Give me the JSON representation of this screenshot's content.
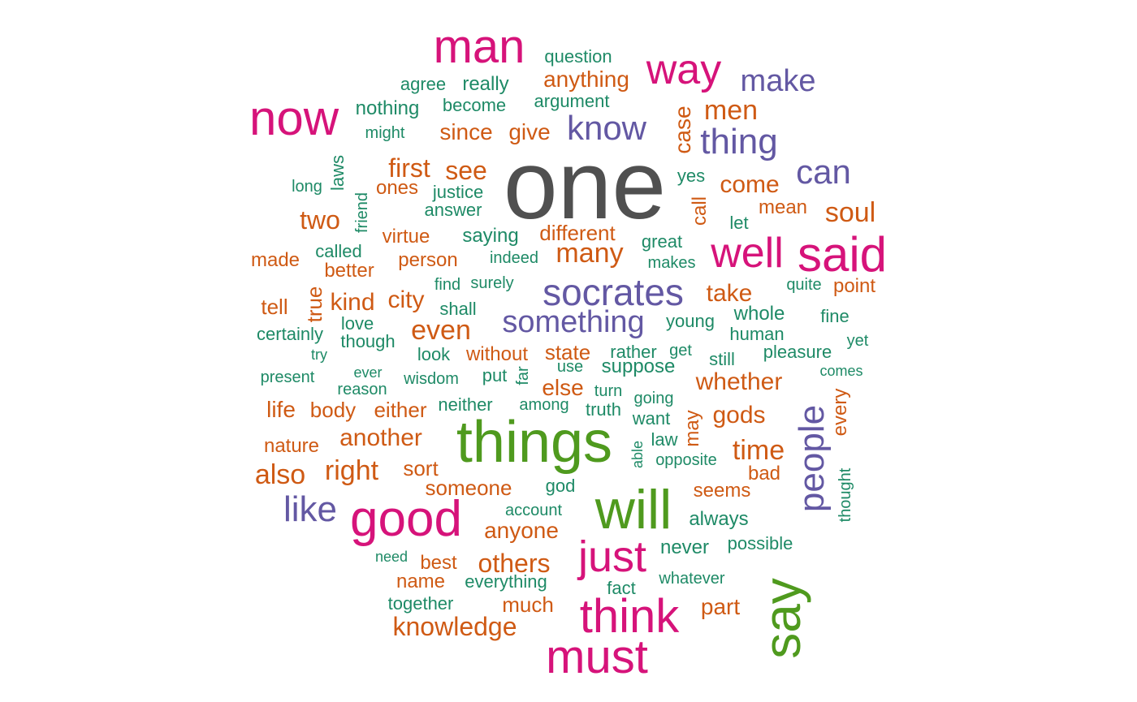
{
  "palette": {
    "gray": "#505050",
    "green": "#4f9a1e",
    "magenta": "#d6137a",
    "purple": "#6358a3",
    "orange": "#cf5a14",
    "teal": "#1e8a66"
  },
  "words": [
    {
      "text": "one",
      "c": "gray"
    },
    {
      "text": "things",
      "c": "green"
    },
    {
      "text": "will",
      "c": "green"
    },
    {
      "text": "say",
      "c": "green"
    },
    {
      "text": "man",
      "c": "magenta"
    },
    {
      "text": "now",
      "c": "magenta"
    },
    {
      "text": "way",
      "c": "magenta"
    },
    {
      "text": "well",
      "c": "magenta"
    },
    {
      "text": "said",
      "c": "magenta"
    },
    {
      "text": "good",
      "c": "magenta"
    },
    {
      "text": "just",
      "c": "magenta"
    },
    {
      "text": "think",
      "c": "magenta"
    },
    {
      "text": "must",
      "c": "magenta"
    },
    {
      "text": "make",
      "c": "purple"
    },
    {
      "text": "know",
      "c": "purple"
    },
    {
      "text": "thing",
      "c": "purple"
    },
    {
      "text": "can",
      "c": "purple"
    },
    {
      "text": "socrates",
      "c": "purple"
    },
    {
      "text": "something",
      "c": "purple"
    },
    {
      "text": "like",
      "c": "purple"
    },
    {
      "text": "people",
      "c": "purple"
    },
    {
      "text": "anything",
      "c": "orange"
    },
    {
      "text": "men",
      "c": "orange"
    },
    {
      "text": "since",
      "c": "orange"
    },
    {
      "text": "give",
      "c": "orange"
    },
    {
      "text": "case",
      "c": "orange"
    },
    {
      "text": "first",
      "c": "orange"
    },
    {
      "text": "see",
      "c": "orange"
    },
    {
      "text": "ones",
      "c": "orange"
    },
    {
      "text": "come",
      "c": "orange"
    },
    {
      "text": "two",
      "c": "orange"
    },
    {
      "text": "call",
      "c": "orange"
    },
    {
      "text": "mean",
      "c": "orange"
    },
    {
      "text": "soul",
      "c": "orange"
    },
    {
      "text": "different",
      "c": "orange"
    },
    {
      "text": "virtue",
      "c": "orange"
    },
    {
      "text": "made",
      "c": "orange"
    },
    {
      "text": "better",
      "c": "orange"
    },
    {
      "text": "person",
      "c": "orange"
    },
    {
      "text": "many",
      "c": "orange"
    },
    {
      "text": "take",
      "c": "orange"
    },
    {
      "text": "point",
      "c": "orange"
    },
    {
      "text": "tell",
      "c": "orange"
    },
    {
      "text": "true",
      "c": "orange"
    },
    {
      "text": "kind",
      "c": "orange"
    },
    {
      "text": "city",
      "c": "orange"
    },
    {
      "text": "even",
      "c": "orange"
    },
    {
      "text": "without",
      "c": "orange"
    },
    {
      "text": "state",
      "c": "orange"
    },
    {
      "text": "whether",
      "c": "orange"
    },
    {
      "text": "else",
      "c": "orange"
    },
    {
      "text": "life",
      "c": "orange"
    },
    {
      "text": "body",
      "c": "orange"
    },
    {
      "text": "either",
      "c": "orange"
    },
    {
      "text": "gods",
      "c": "orange"
    },
    {
      "text": "may",
      "c": "orange"
    },
    {
      "text": "nature",
      "c": "orange"
    },
    {
      "text": "another",
      "c": "orange"
    },
    {
      "text": "time",
      "c": "orange"
    },
    {
      "text": "also",
      "c": "orange"
    },
    {
      "text": "right",
      "c": "orange"
    },
    {
      "text": "sort",
      "c": "orange"
    },
    {
      "text": "bad",
      "c": "orange"
    },
    {
      "text": "someone",
      "c": "orange"
    },
    {
      "text": "seems",
      "c": "orange"
    },
    {
      "text": "anyone",
      "c": "orange"
    },
    {
      "text": "others",
      "c": "orange"
    },
    {
      "text": "best",
      "c": "orange"
    },
    {
      "text": "name",
      "c": "orange"
    },
    {
      "text": "much",
      "c": "orange"
    },
    {
      "text": "part",
      "c": "orange"
    },
    {
      "text": "knowledge",
      "c": "orange"
    },
    {
      "text": "every",
      "c": "orange"
    },
    {
      "text": "question",
      "c": "teal"
    },
    {
      "text": "agree",
      "c": "teal"
    },
    {
      "text": "really",
      "c": "teal"
    },
    {
      "text": "nothing",
      "c": "teal"
    },
    {
      "text": "become",
      "c": "teal"
    },
    {
      "text": "argument",
      "c": "teal"
    },
    {
      "text": "might",
      "c": "teal"
    },
    {
      "text": "laws",
      "c": "teal"
    },
    {
      "text": "long",
      "c": "teal"
    },
    {
      "text": "justice",
      "c": "teal"
    },
    {
      "text": "yes",
      "c": "teal"
    },
    {
      "text": "friend",
      "c": "teal"
    },
    {
      "text": "answer",
      "c": "teal"
    },
    {
      "text": "let",
      "c": "teal"
    },
    {
      "text": "saying",
      "c": "teal"
    },
    {
      "text": "great",
      "c": "teal"
    },
    {
      "text": "called",
      "c": "teal"
    },
    {
      "text": "indeed",
      "c": "teal"
    },
    {
      "text": "makes",
      "c": "teal"
    },
    {
      "text": "find",
      "c": "teal"
    },
    {
      "text": "surely",
      "c": "teal"
    },
    {
      "text": "quite",
      "c": "teal"
    },
    {
      "text": "shall",
      "c": "teal"
    },
    {
      "text": "whole",
      "c": "teal"
    },
    {
      "text": "love",
      "c": "teal"
    },
    {
      "text": "young",
      "c": "teal"
    },
    {
      "text": "fine",
      "c": "teal"
    },
    {
      "text": "certainly",
      "c": "teal"
    },
    {
      "text": "though",
      "c": "teal"
    },
    {
      "text": "human",
      "c": "teal"
    },
    {
      "text": "yet",
      "c": "teal"
    },
    {
      "text": "try",
      "c": "teal"
    },
    {
      "text": "look",
      "c": "teal"
    },
    {
      "text": "rather",
      "c": "teal"
    },
    {
      "text": "get",
      "c": "teal"
    },
    {
      "text": "pleasure",
      "c": "teal"
    },
    {
      "text": "still",
      "c": "teal"
    },
    {
      "text": "present",
      "c": "teal"
    },
    {
      "text": "ever",
      "c": "teal"
    },
    {
      "text": "put",
      "c": "teal"
    },
    {
      "text": "far",
      "c": "teal"
    },
    {
      "text": "use",
      "c": "teal"
    },
    {
      "text": "suppose",
      "c": "teal"
    },
    {
      "text": "comes",
      "c": "teal"
    },
    {
      "text": "wisdom",
      "c": "teal"
    },
    {
      "text": "reason",
      "c": "teal"
    },
    {
      "text": "turn",
      "c": "teal"
    },
    {
      "text": "neither",
      "c": "teal"
    },
    {
      "text": "among",
      "c": "teal"
    },
    {
      "text": "truth",
      "c": "teal"
    },
    {
      "text": "going",
      "c": "teal"
    },
    {
      "text": "want",
      "c": "teal"
    },
    {
      "text": "law",
      "c": "teal"
    },
    {
      "text": "able",
      "c": "teal"
    },
    {
      "text": "opposite",
      "c": "teal"
    },
    {
      "text": "god",
      "c": "teal"
    },
    {
      "text": "thought",
      "c": "teal"
    },
    {
      "text": "account",
      "c": "teal"
    },
    {
      "text": "always",
      "c": "teal"
    },
    {
      "text": "need",
      "c": "teal"
    },
    {
      "text": "never",
      "c": "teal"
    },
    {
      "text": "possible",
      "c": "teal"
    },
    {
      "text": "everything",
      "c": "teal"
    },
    {
      "text": "whatever",
      "c": "teal"
    },
    {
      "text": "fact",
      "c": "teal"
    },
    {
      "text": "together",
      "c": "teal"
    }
  ]
}
